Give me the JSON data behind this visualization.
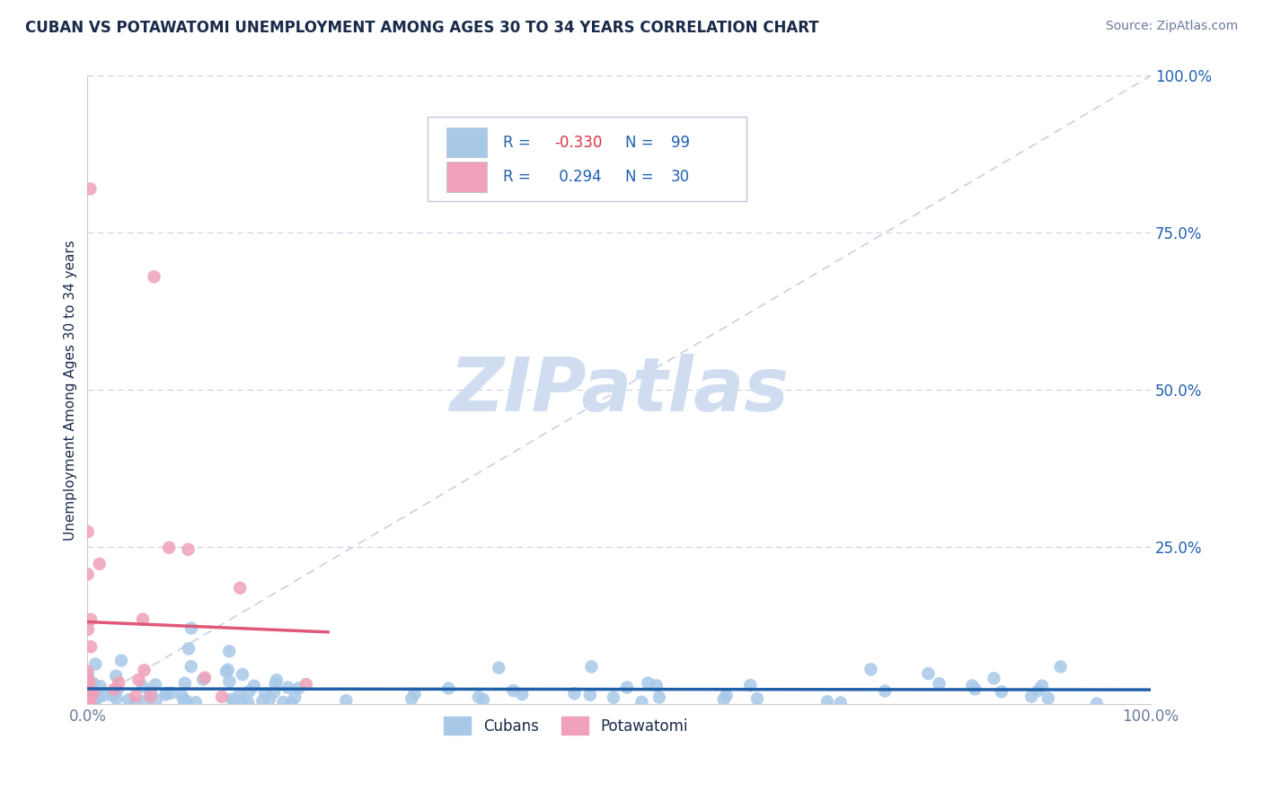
{
  "title": "CUBAN VS POTAWATOMI UNEMPLOYMENT AMONG AGES 30 TO 34 YEARS CORRELATION CHART",
  "source": "Source: ZipAtlas.com",
  "ylabel": "Unemployment Among Ages 30 to 34 years",
  "xlim": [
    0,
    1
  ],
  "ylim": [
    0,
    1
  ],
  "xtick_labels": [
    "0.0%",
    "100.0%"
  ],
  "ytick_labels": [
    "25.0%",
    "50.0%",
    "75.0%",
    "100.0%"
  ],
  "ytick_positions": [
    0.25,
    0.5,
    0.75,
    1.0
  ],
  "cubans_R": -0.33,
  "cubans_N": 99,
  "potawatomi_R": 0.294,
  "potawatomi_N": 30,
  "cubans_color": "#a8c8e8",
  "potawatomi_color": "#f0a0b8",
  "cubans_line_color": "#2060a8",
  "potawatomi_line_color": "#e05878",
  "reference_line_color": "#c8d0e0",
  "grid_color": "#c8d0e0",
  "title_color": "#1a2a4a",
  "source_color": "#6a7a9a",
  "legend_color": "#2060b0",
  "watermark_color": "#d0ddf0",
  "legend_border_color": "#c0c8d8",
  "neg_R_color": "#e03040"
}
